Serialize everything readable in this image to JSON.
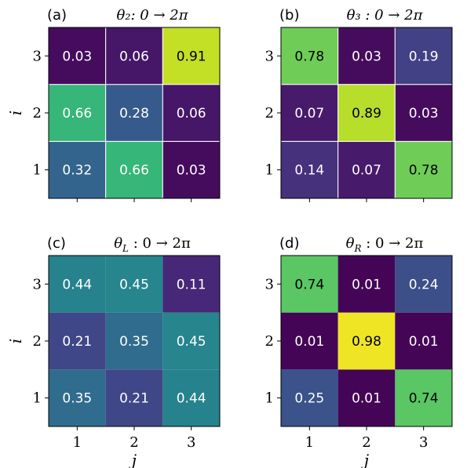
{
  "chart_data": [
    {
      "type": "heatmap",
      "panel_label": "(a)",
      "title": "θ₂: 0 → 2π",
      "x_categories": [
        "1",
        "2",
        "3"
      ],
      "y_categories": [
        "1",
        "2",
        "3"
      ],
      "values": [
        [
          0.32,
          0.66,
          0.03
        ],
        [
          0.66,
          0.28,
          0.06
        ],
        [
          0.03,
          0.06,
          0.91
        ]
      ],
      "xlabel": "",
      "ylabel": "i",
      "colormap": "viridis",
      "vmin": 0,
      "vmax": 1,
      "show_x_tick_labels": false,
      "show_y_tick_labels": true,
      "cell_borders": true
    },
    {
      "type": "heatmap",
      "panel_label": "(b)",
      "title": "θ₃ : 0 → 2π",
      "x_categories": [
        "1",
        "2",
        "3"
      ],
      "y_categories": [
        "1",
        "2",
        "3"
      ],
      "values": [
        [
          0.14,
          0.07,
          0.78
        ],
        [
          0.07,
          0.89,
          0.03
        ],
        [
          0.78,
          0.03,
          0.19
        ]
      ],
      "xlabel": "",
      "ylabel": "",
      "colormap": "viridis",
      "vmin": 0,
      "vmax": 1,
      "show_x_tick_labels": false,
      "show_y_tick_labels": true,
      "cell_borders": true
    },
    {
      "type": "heatmap",
      "panel_label": "(c)",
      "title": "θ_L : 0 → 2π",
      "x_categories": [
        "1",
        "2",
        "3"
      ],
      "y_categories": [
        "1",
        "2",
        "3"
      ],
      "values": [
        [
          0.35,
          0.21,
          0.44
        ],
        [
          0.21,
          0.35,
          0.45
        ],
        [
          0.44,
          0.45,
          0.11
        ]
      ],
      "xlabel": "j",
      "ylabel": "i",
      "colormap": "viridis",
      "vmin": 0,
      "vmax": 1,
      "show_x_tick_labels": true,
      "show_y_tick_labels": true,
      "cell_borders": false
    },
    {
      "type": "heatmap",
      "panel_label": "(d)",
      "title": "θ_R : 0 → 2π",
      "x_categories": [
        "1",
        "2",
        "3"
      ],
      "y_categories": [
        "1",
        "2",
        "3"
      ],
      "values": [
        [
          0.25,
          0.01,
          0.74
        ],
        [
          0.01,
          0.98,
          0.01
        ],
        [
          0.74,
          0.01,
          0.24
        ]
      ],
      "xlabel": "j",
      "ylabel": "",
      "colormap": "viridis",
      "vmin": 0,
      "vmax": 1,
      "show_x_tick_labels": true,
      "show_y_tick_labels": true,
      "cell_borders": false
    }
  ]
}
